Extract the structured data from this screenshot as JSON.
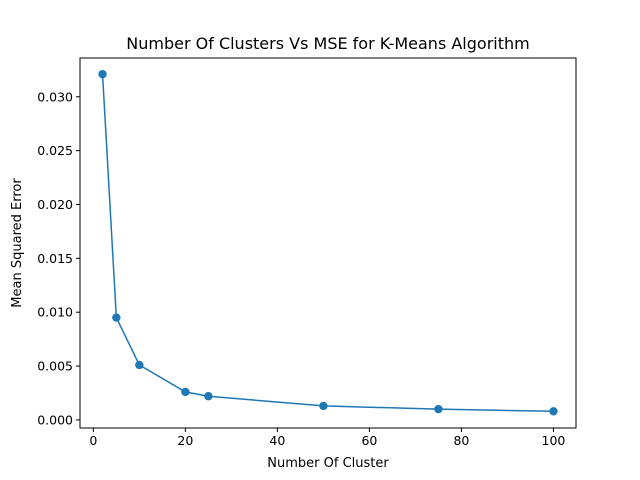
{
  "chart_data": {
    "type": "line",
    "title": "Number Of Clusters Vs MSE for K-Means Algorithm",
    "xlabel": "Number Of Cluster",
    "ylabel": "Mean Squared Error",
    "xlim": [
      -2.9,
      104.9
    ],
    "ylim": [
      -0.00075,
      0.0336
    ],
    "x_ticks": [
      0,
      20,
      40,
      60,
      80,
      100
    ],
    "x_tick_labels": [
      "0",
      "20",
      "40",
      "60",
      "80",
      "100"
    ],
    "y_ticks": [
      0.0,
      0.005,
      0.01,
      0.015,
      0.02,
      0.025,
      0.03
    ],
    "y_tick_labels": [
      "0.000",
      "0.005",
      "0.010",
      "0.015",
      "0.020",
      "0.025",
      "0.030"
    ],
    "grid": false,
    "legend": "none",
    "series": [
      {
        "x": [
          2,
          5,
          10,
          20,
          25,
          50,
          75,
          100
        ],
        "y": [
          0.0321,
          0.0095,
          0.0051,
          0.0026,
          0.0022,
          0.0013,
          0.001,
          0.0008
        ],
        "color": "#1f77b4",
        "marker": "circle"
      }
    ]
  }
}
